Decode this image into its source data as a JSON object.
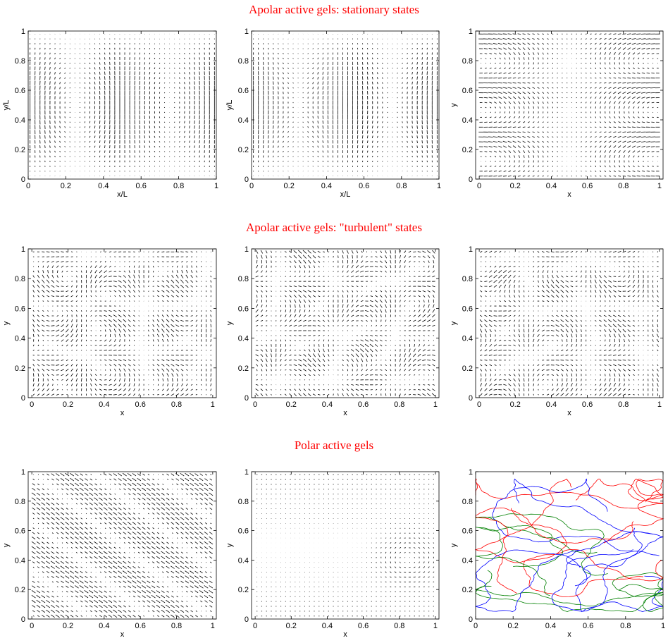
{
  "sections": [
    {
      "title": "Apolar active gels: stationary states"
    },
    {
      "title": "Apolar active gels: \"turbulent\" states"
    },
    {
      "title": "Polar active gels"
    }
  ],
  "chart_data": [
    {
      "type": "quiver",
      "pattern": "vertical-rolls",
      "xlabel": "x/L",
      "ylabel": "y/L",
      "xlim": [
        0,
        1
      ],
      "ylim": [
        0,
        1
      ],
      "xticks": [
        "0",
        "0.2",
        "0.4",
        "0.6",
        "0.8",
        "1"
      ],
      "yticks": [
        "0",
        "0.2",
        "0.4",
        "0.6",
        "0.8",
        "1"
      ]
    },
    {
      "type": "quiver",
      "pattern": "vertical-rolls-shifted",
      "xlabel": "x/L",
      "ylabel": "y/L",
      "xlim": [
        0,
        1
      ],
      "ylim": [
        0,
        1
      ],
      "xticks": [
        "0",
        "0.2",
        "0.4",
        "0.6",
        "0.8",
        "1"
      ],
      "yticks": [
        "0",
        "0.2",
        "0.4",
        "0.6",
        "0.8",
        "1"
      ]
    },
    {
      "type": "quiver",
      "pattern": "horizontal-bands",
      "xlabel": "x",
      "ylabel": "y",
      "xlim": [
        -0.02,
        1.02
      ],
      "ylim": [
        0,
        1
      ],
      "xticks": [
        "0",
        "0.2",
        "0.4",
        "0.6",
        "0.8",
        "1"
      ],
      "yticks": [
        "0",
        "0.2",
        "0.4",
        "0.6",
        "0.8",
        "1"
      ]
    },
    {
      "type": "quiver",
      "pattern": "turbulent",
      "xlabel": "x",
      "ylabel": "y",
      "xlim": [
        -0.02,
        1.02
      ],
      "ylim": [
        0,
        1
      ],
      "xticks": [
        "0",
        "0.2",
        "0.4",
        "0.6",
        "0.8",
        "1"
      ],
      "yticks": [
        "0",
        "0.2",
        "0.4",
        "0.6",
        "0.8",
        "1"
      ]
    },
    {
      "type": "quiver",
      "pattern": "turbulent",
      "xlabel": "x",
      "ylabel": "y",
      "xlim": [
        -0.02,
        1.02
      ],
      "ylim": [
        0,
        1
      ],
      "xticks": [
        "0",
        "0.2",
        "0.4",
        "0.6",
        "0.8",
        "1"
      ],
      "yticks": [
        "0",
        "0.2",
        "0.4",
        "0.6",
        "0.8",
        "1"
      ]
    },
    {
      "type": "quiver",
      "pattern": "turbulent",
      "xlabel": "x",
      "ylabel": "y",
      "xlim": [
        -0.02,
        1.02
      ],
      "ylim": [
        0,
        1
      ],
      "xticks": [
        "0",
        "0.2",
        "0.4",
        "0.6",
        "0.8",
        "1"
      ],
      "yticks": [
        "0",
        "0.2",
        "0.4",
        "0.6",
        "0.8",
        "1"
      ]
    },
    {
      "type": "quiver",
      "pattern": "diagonal-bands",
      "xlabel": "x",
      "ylabel": "y",
      "xlim": [
        -0.02,
        1.02
      ],
      "ylim": [
        0,
        1
      ],
      "xticks": [
        "0",
        "0.2",
        "0.4",
        "0.6",
        "0.8",
        "1"
      ],
      "yticks": [
        "0",
        "0.2",
        "0.4",
        "0.6",
        "0.8",
        "1"
      ]
    },
    {
      "type": "quiver",
      "pattern": "shear-with-vortex",
      "xlabel": "x",
      "ylabel": "y",
      "xlim": [
        -0.02,
        1.02
      ],
      "ylim": [
        0,
        1
      ],
      "xticks": [
        "0",
        "0.2",
        "0.4",
        "0.6",
        "0.8",
        "1"
      ],
      "yticks": [
        "0",
        "0.2",
        "0.4",
        "0.6",
        "0.8",
        "1"
      ]
    },
    {
      "type": "line",
      "pattern": "trajectories",
      "xlabel": "x",
      "ylabel": "y",
      "xlim": [
        0,
        1
      ],
      "ylim": [
        0,
        1
      ],
      "xticks": [
        "0",
        "0.2",
        "0.4",
        "0.6",
        "0.8",
        "1"
      ],
      "yticks": [
        "0",
        "0.2",
        "0.4",
        "0.6",
        "0.8",
        "1"
      ],
      "colors": [
        "#ff0000",
        "#0000ff",
        "#008000"
      ]
    }
  ]
}
